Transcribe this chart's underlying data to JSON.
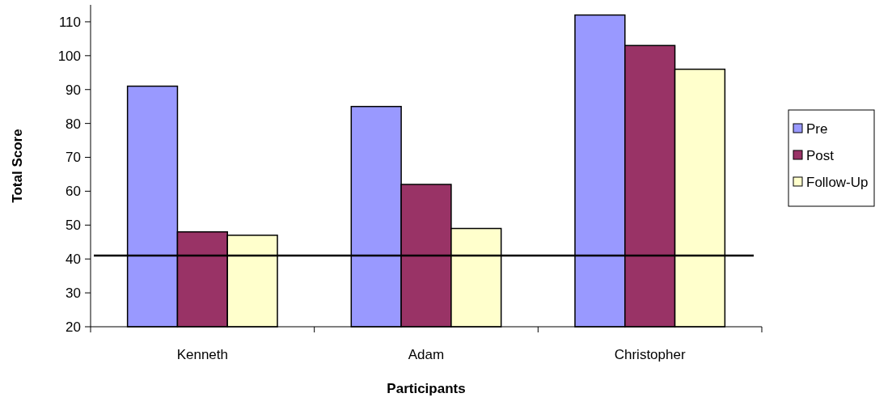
{
  "chart_data": {
    "type": "bar",
    "xlabel": "Participants",
    "ylabel": "Total Score",
    "categories": [
      "Kenneth",
      "Adam",
      "Christopher"
    ],
    "series": [
      {
        "name": "Pre",
        "color": "#9999ff",
        "values": [
          91,
          85,
          112
        ]
      },
      {
        "name": "Post",
        "color": "#993366",
        "values": [
          48,
          62,
          103
        ]
      },
      {
        "name": "Follow-Up",
        "color": "#ffffcc",
        "values": [
          47,
          49,
          96
        ]
      }
    ],
    "ylim": [
      20,
      115
    ],
    "yticks": [
      20,
      30,
      40,
      50,
      60,
      70,
      80,
      90,
      100,
      110
    ],
    "grid": false,
    "legend": "right",
    "ref_lines": [
      {
        "axis": "y",
        "value": 41,
        "color": "#000000"
      }
    ]
  }
}
